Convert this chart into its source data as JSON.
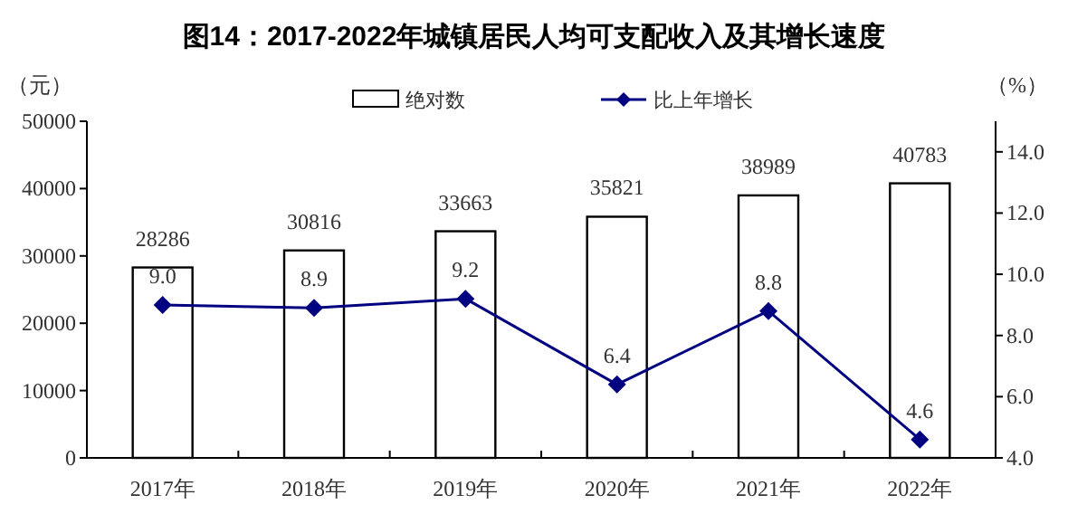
{
  "chart_data": {
    "type": "bar",
    "title": "图14：2017-2022年城镇居民人均可支配收入及其增长速度",
    "ylabel": "（元）",
    "y2label": "（%）",
    "categories": [
      "2017年",
      "2018年",
      "2019年",
      "2020年",
      "2021年",
      "2022年"
    ],
    "series": [
      {
        "name": "绝对数",
        "color": "#ffffff",
        "values": [
          28286,
          30816,
          33663,
          35821,
          38989,
          40783
        ]
      },
      {
        "name": "比上年增长",
        "type": "line",
        "axis": "y2",
        "color": "#000080",
        "marker": "diamond",
        "values": [
          9.0,
          8.9,
          9.2,
          6.4,
          8.8,
          4.6
        ],
        "value_labels": [
          "9.0",
          "8.9",
          "9.2",
          "6.4",
          "8.8",
          "4.6"
        ]
      }
    ],
    "ylim": [
      0,
      50000
    ],
    "yticks": [
      0,
      10000,
      20000,
      30000,
      40000,
      50000
    ],
    "y2lim": [
      4,
      15
    ],
    "y2ticks": [
      {
        "value": 4,
        "label": "4.0"
      },
      {
        "value": 6,
        "label": "6.0"
      },
      {
        "value": 8,
        "label": "8.0"
      },
      {
        "value": 10,
        "label": "10.0"
      },
      {
        "value": 12,
        "label": "12.0"
      },
      {
        "value": 14,
        "label": "14.0"
      }
    ],
    "data_labels": true,
    "legend": "top",
    "grid": false
  }
}
